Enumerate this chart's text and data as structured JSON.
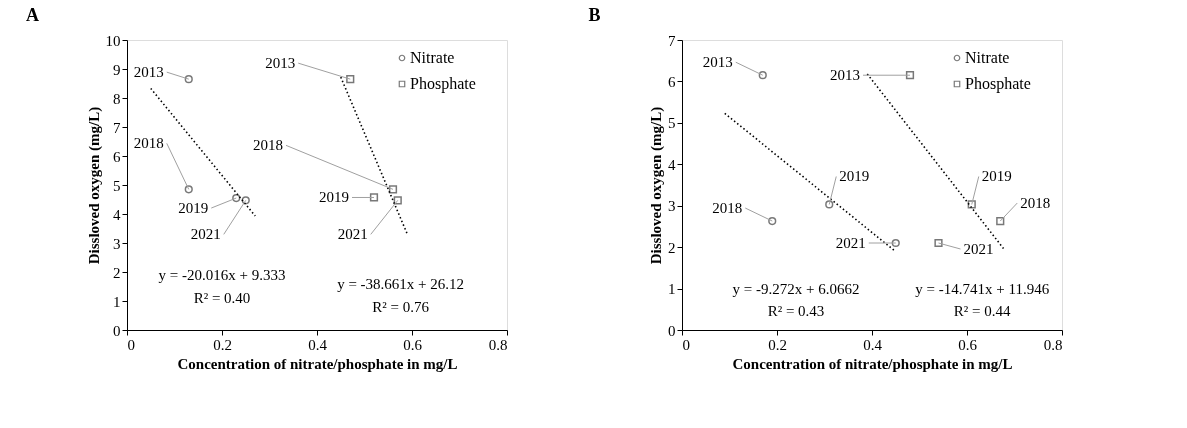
{
  "chart_data": [
    {
      "type": "scatter",
      "title": "A",
      "xlabel": "Concentration of nitrate/phosphate in mg/L",
      "ylabel": "Dissloved oxygen (mg/L)",
      "xlim": [
        0,
        0.8
      ],
      "xticks": [
        0,
        0.2,
        0.4,
        0.6,
        0.8
      ],
      "ylim": [
        0,
        10
      ],
      "yticks": [
        0,
        1,
        2,
        3,
        4,
        5,
        6,
        7,
        8,
        9,
        10
      ],
      "legend": "top right",
      "series": [
        {
          "name": "Nitrate",
          "color": "#404040",
          "marker": "circle",
          "x": [
            0.13,
            0.13,
            0.23,
            0.25
          ],
          "values": [
            8.65,
            4.85,
            4.55,
            4.47
          ]
        },
        {
          "name": "Phosphate",
          "color": "#404040",
          "marker": "square",
          "x": [
            0.47,
            0.56,
            0.52,
            0.57
          ],
          "values": [
            8.65,
            4.85,
            4.57,
            4.47
          ]
        },
        {
          "type": "line",
          "color": "#000000",
          "line_style": "dotted",
          "x": [
            0.05,
            0.27
          ],
          "values": [
            8.33,
            3.93
          ]
        },
        {
          "type": "line",
          "color": "#000000",
          "line_style": "dotted",
          "x": [
            0.45,
            0.59
          ],
          "values": [
            8.72,
            3.31
          ]
        }
      ],
      "annotations": [
        {
          "text": "2013",
          "x": 0.13,
          "y": 8.65
        },
        {
          "text": "2018",
          "x": 0.13,
          "y": 4.85
        },
        {
          "text": "2019",
          "x": 0.23,
          "y": 4.55
        },
        {
          "text": "2021",
          "x": 0.25,
          "y": 4.47
        },
        {
          "text": "2013",
          "x": 0.47,
          "y": 8.65
        },
        {
          "text": "2018",
          "x": 0.56,
          "y": 4.85
        },
        {
          "text": "2019",
          "x": 0.52,
          "y": 4.57
        },
        {
          "text": "2021",
          "x": 0.57,
          "y": 4.47
        },
        "y = -20.016x + 9.333",
        "R² = 0.40",
        "y = -38.661x + 26.12",
        "R² = 0.76"
      ]
    },
    {
      "type": "scatter",
      "title": "B",
      "xlabel": "Concentration of nitrate/phosphate in mg/L",
      "ylabel": "Dissloved oxygen (mg/L)",
      "xlim": [
        0,
        0.8
      ],
      "xticks": [
        0,
        0.2,
        0.4,
        0.6,
        0.8
      ],
      "ylim": [
        0,
        7
      ],
      "yticks": [
        0,
        1,
        2,
        3,
        4,
        5,
        6,
        7
      ],
      "legend": "top right",
      "series": [
        {
          "name": "Nitrate",
          "color": "#404040",
          "marker": "circle",
          "x": [
            0.17,
            0.19,
            0.31,
            0.45
          ],
          "values": [
            6.15,
            2.63,
            3.03,
            2.1
          ]
        },
        {
          "name": "Phosphate",
          "color": "#404040",
          "marker": "square",
          "x": [
            0.48,
            0.67,
            0.61,
            0.54
          ],
          "values": [
            6.15,
            2.63,
            3.03,
            2.1
          ]
        },
        {
          "type": "line",
          "color": "#000000",
          "line_style": "dotted",
          "x": [
            0.09,
            0.45
          ],
          "values": [
            5.23,
            1.89
          ]
        },
        {
          "type": "line",
          "color": "#000000",
          "line_style": "dotted",
          "x": [
            0.39,
            0.68
          ],
          "values": [
            6.18,
            1.92
          ]
        }
      ],
      "annotations": [
        {
          "text": "2013",
          "x": 0.17,
          "y": 6.15
        },
        {
          "text": "2018",
          "x": 0.19,
          "y": 2.63
        },
        {
          "text": "2019",
          "x": 0.31,
          "y": 3.03
        },
        {
          "text": "2021",
          "x": 0.45,
          "y": 2.1
        },
        {
          "text": "2013",
          "x": 0.48,
          "y": 6.15
        },
        {
          "text": "2018",
          "x": 0.67,
          "y": 2.63
        },
        {
          "text": "2019",
          "x": 0.61,
          "y": 3.03
        },
        {
          "text": "2021",
          "x": 0.54,
          "y": 2.1
        },
        "y = -9.272x + 6.0662",
        "R² = 0.43",
        "y = -14.741x + 11.946",
        "R² = 0.44"
      ]
    }
  ]
}
